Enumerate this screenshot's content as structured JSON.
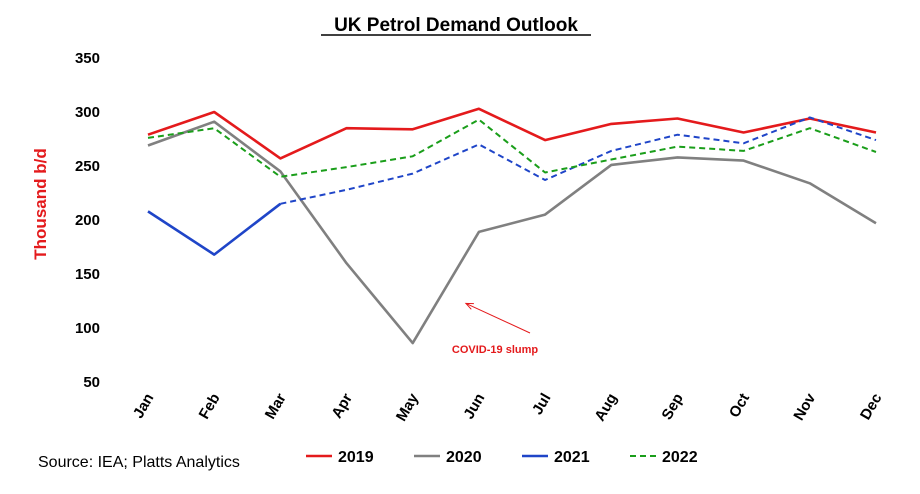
{
  "chart_data": {
    "type": "line",
    "title": "UK Petrol Demand Outlook",
    "ylabel": "Thousand b/d",
    "xlabel": "",
    "ylim": [
      50,
      350
    ],
    "yticks": [
      50,
      100,
      150,
      200,
      250,
      300,
      350
    ],
    "categories": [
      "Jan",
      "Feb",
      "Mar",
      "Apr",
      "May",
      "Jun",
      "Jul",
      "Aug",
      "Sep",
      "Oct",
      "Nov",
      "Dec"
    ],
    "grid": false,
    "legend_position": "bottom",
    "series": [
      {
        "name": "2019",
        "color": "#e41a1c",
        "style": "solid",
        "values": [
          279,
          300,
          257,
          285,
          284,
          303,
          274,
          289,
          294,
          281,
          294,
          281
        ]
      },
      {
        "name": "2020",
        "color": "#808080",
        "style": "solid",
        "values": [
          269,
          291,
          245,
          160,
          86,
          189,
          205,
          251,
          258,
          255,
          234,
          197
        ]
      },
      {
        "name": "2021",
        "color": "#1f45c8",
        "style": "solid",
        "values": [
          208,
          168,
          215,
          null,
          null,
          null,
          null,
          null,
          null,
          null,
          null,
          null
        ]
      },
      {
        "name": "2021",
        "legend": false,
        "color": "#1f45c8",
        "style": "dashed",
        "values": [
          null,
          null,
          215,
          228,
          243,
          270,
          237,
          264,
          279,
          271,
          295,
          274
        ]
      },
      {
        "name": "2022",
        "color": "#1a9e1a",
        "style": "dashed",
        "values": [
          276,
          285,
          240,
          249,
          259,
          293,
          244,
          256,
          268,
          264,
          285,
          263
        ]
      }
    ],
    "annotations": [
      {
        "text": "COVID-19 slump",
        "color": "#e41a1c",
        "arrow_to": {
          "x": "May",
          "y": 120
        }
      }
    ]
  },
  "source": "Source:  IEA; Platts Analytics"
}
